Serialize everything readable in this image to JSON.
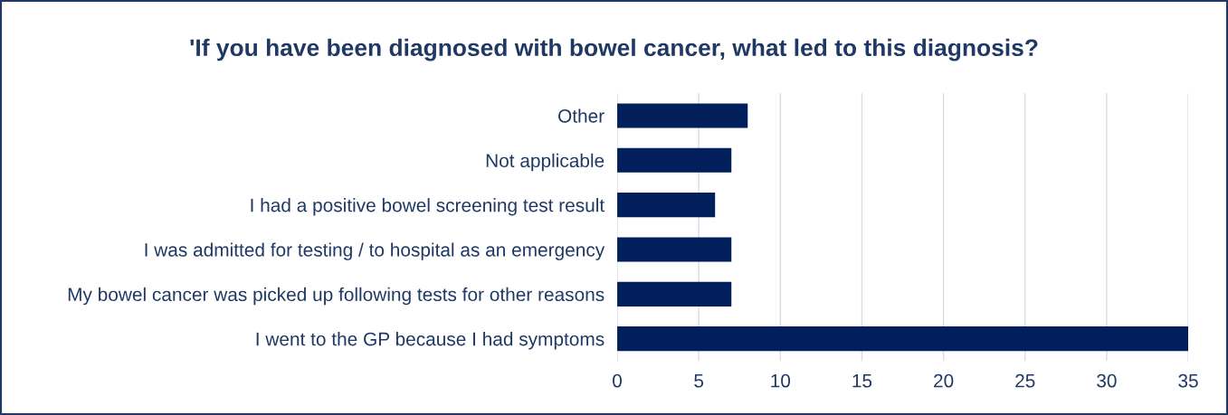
{
  "chart_data": {
    "type": "bar",
    "orientation": "horizontal",
    "title": "'If you have been diagnosed with bowel cancer, what led to this diagnosis?",
    "categories": [
      "Other",
      "Not applicable",
      "I had a positive bowel screening test result",
      "I was admitted for testing / to hospital as an emergency",
      "My bowel cancer was picked up following tests for other reasons",
      "I went to the GP because I had symptoms"
    ],
    "values": [
      8,
      7,
      6,
      7,
      7,
      35
    ],
    "color": "#001f5b",
    "xlim": [
      0,
      35
    ],
    "xticks": [
      0,
      5,
      10,
      15,
      20,
      25,
      30,
      35
    ],
    "grid": "x"
  }
}
